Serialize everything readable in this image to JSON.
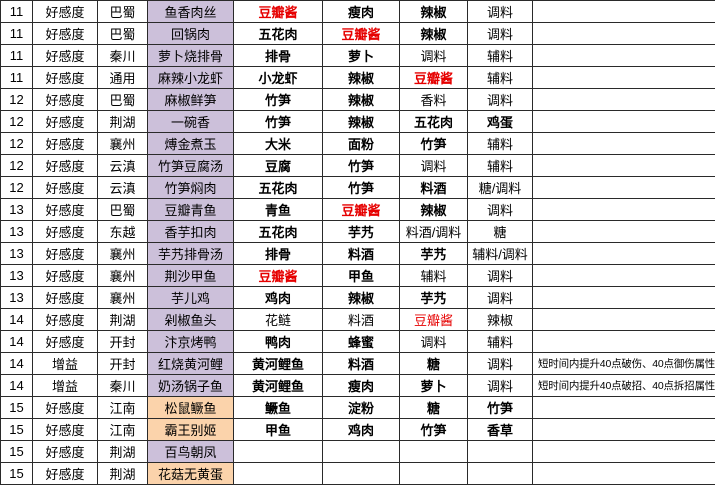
{
  "colors": {
    "dish_purple": "#ccc0da",
    "dish_orange": "#fbd3ab",
    "ingredient_red": "#e60000",
    "grid_border": "#2a2a2a"
  },
  "table": {
    "columns": [
      "level",
      "type",
      "region",
      "dish",
      "ingredient1",
      "ingredient2",
      "ingredient3",
      "ingredient4",
      "note"
    ],
    "rows": [
      {
        "level": "11",
        "type": "好感度",
        "region": "巴蜀",
        "dish": "鱼香肉丝",
        "dish_bg": "purple",
        "ingredients": [
          {
            "text": "豆瓣酱",
            "bold": true,
            "red": true
          },
          {
            "text": "瘦肉",
            "bold": true,
            "red": false
          },
          {
            "text": "辣椒",
            "bold": true,
            "red": false
          },
          {
            "text": "调料",
            "bold": false,
            "red": false
          }
        ],
        "note": ""
      },
      {
        "level": "11",
        "type": "好感度",
        "region": "巴蜀",
        "dish": "回锅肉",
        "dish_bg": "purple",
        "ingredients": [
          {
            "text": "五花肉",
            "bold": true,
            "red": false
          },
          {
            "text": "豆瓣酱",
            "bold": true,
            "red": true
          },
          {
            "text": "辣椒",
            "bold": true,
            "red": false
          },
          {
            "text": "调料",
            "bold": false,
            "red": false
          }
        ],
        "note": ""
      },
      {
        "level": "11",
        "type": "好感度",
        "region": "秦川",
        "dish": "萝卜烧排骨",
        "dish_bg": "purple",
        "ingredients": [
          {
            "text": "排骨",
            "bold": true,
            "red": false
          },
          {
            "text": "萝卜",
            "bold": true,
            "red": false
          },
          {
            "text": "调料",
            "bold": false,
            "red": false
          },
          {
            "text": "辅料",
            "bold": false,
            "red": false
          }
        ],
        "note": ""
      },
      {
        "level": "11",
        "type": "好感度",
        "region": "通用",
        "dish": "麻辣小龙虾",
        "dish_bg": "purple",
        "ingredients": [
          {
            "text": "小龙虾",
            "bold": true,
            "red": false
          },
          {
            "text": "辣椒",
            "bold": true,
            "red": false
          },
          {
            "text": "豆瓣酱",
            "bold": true,
            "red": true
          },
          {
            "text": "辅料",
            "bold": false,
            "red": false
          }
        ],
        "note": ""
      },
      {
        "level": "12",
        "type": "好感度",
        "region": "巴蜀",
        "dish": "麻椒鲜笋",
        "dish_bg": "purple",
        "ingredients": [
          {
            "text": "竹笋",
            "bold": true,
            "red": false
          },
          {
            "text": "辣椒",
            "bold": true,
            "red": false
          },
          {
            "text": "香料",
            "bold": false,
            "red": false
          },
          {
            "text": "调料",
            "bold": false,
            "red": false
          }
        ],
        "note": ""
      },
      {
        "level": "12",
        "type": "好感度",
        "region": "荆湖",
        "dish": "一碗香",
        "dish_bg": "purple",
        "ingredients": [
          {
            "text": "竹笋",
            "bold": true,
            "red": false
          },
          {
            "text": "辣椒",
            "bold": true,
            "red": false
          },
          {
            "text": "五花肉",
            "bold": true,
            "red": false
          },
          {
            "text": "鸡蛋",
            "bold": true,
            "red": false
          }
        ],
        "note": ""
      },
      {
        "level": "12",
        "type": "好感度",
        "region": "襄州",
        "dish": "煿金煮玉",
        "dish_bg": "purple",
        "ingredients": [
          {
            "text": "大米",
            "bold": true,
            "red": false
          },
          {
            "text": "面粉",
            "bold": true,
            "red": false
          },
          {
            "text": "竹笋",
            "bold": true,
            "red": false
          },
          {
            "text": "辅料",
            "bold": false,
            "red": false
          }
        ],
        "note": ""
      },
      {
        "level": "12",
        "type": "好感度",
        "region": "云滇",
        "dish": "竹笋豆腐汤",
        "dish_bg": "purple",
        "ingredients": [
          {
            "text": "豆腐",
            "bold": true,
            "red": false
          },
          {
            "text": "竹笋",
            "bold": true,
            "red": false
          },
          {
            "text": "调料",
            "bold": false,
            "red": false
          },
          {
            "text": "辅料",
            "bold": false,
            "red": false
          }
        ],
        "note": ""
      },
      {
        "level": "12",
        "type": "好感度",
        "region": "云滇",
        "dish": "竹笋焖肉",
        "dish_bg": "purple",
        "ingredients": [
          {
            "text": "五花肉",
            "bold": true,
            "red": false
          },
          {
            "text": "竹笋",
            "bold": true,
            "red": false
          },
          {
            "text": "料酒",
            "bold": true,
            "red": false
          },
          {
            "text": "糖/调料",
            "bold": false,
            "red": false
          }
        ],
        "note": ""
      },
      {
        "level": "13",
        "type": "好感度",
        "region": "巴蜀",
        "dish": "豆瓣青鱼",
        "dish_bg": "purple",
        "ingredients": [
          {
            "text": "青鱼",
            "bold": true,
            "red": false
          },
          {
            "text": "豆瓣酱",
            "bold": true,
            "red": true
          },
          {
            "text": "辣椒",
            "bold": true,
            "red": false
          },
          {
            "text": "调料",
            "bold": false,
            "red": false
          }
        ],
        "note": ""
      },
      {
        "level": "13",
        "type": "好感度",
        "region": "东越",
        "dish": "香芋扣肉",
        "dish_bg": "purple",
        "ingredients": [
          {
            "text": "五花肉",
            "bold": true,
            "red": false
          },
          {
            "text": "芋艿",
            "bold": true,
            "red": false
          },
          {
            "text": "料酒/调料",
            "bold": false,
            "red": false
          },
          {
            "text": "糖",
            "bold": false,
            "red": false
          }
        ],
        "note": ""
      },
      {
        "level": "13",
        "type": "好感度",
        "region": "襄州",
        "dish": "芋艿排骨汤",
        "dish_bg": "purple",
        "ingredients": [
          {
            "text": "排骨",
            "bold": true,
            "red": false
          },
          {
            "text": "料酒",
            "bold": true,
            "red": false
          },
          {
            "text": "芋艿",
            "bold": true,
            "red": false
          },
          {
            "text": "辅料/调料",
            "bold": false,
            "red": false
          }
        ],
        "note": ""
      },
      {
        "level": "13",
        "type": "好感度",
        "region": "襄州",
        "dish": "荆沙甲鱼",
        "dish_bg": "purple",
        "ingredients": [
          {
            "text": "豆瓣酱",
            "bold": true,
            "red": true
          },
          {
            "text": "甲鱼",
            "bold": true,
            "red": false
          },
          {
            "text": "辅料",
            "bold": false,
            "red": false
          },
          {
            "text": "调料",
            "bold": false,
            "red": false
          }
        ],
        "note": ""
      },
      {
        "level": "13",
        "type": "好感度",
        "region": "襄州",
        "dish": "芋儿鸡",
        "dish_bg": "purple",
        "ingredients": [
          {
            "text": "鸡肉",
            "bold": true,
            "red": false
          },
          {
            "text": "辣椒",
            "bold": true,
            "red": false
          },
          {
            "text": "芋艿",
            "bold": true,
            "red": false
          },
          {
            "text": "调料",
            "bold": false,
            "red": false
          }
        ],
        "note": ""
      },
      {
        "level": "14",
        "type": "好感度",
        "region": "荆湖",
        "dish": "剁椒鱼头",
        "dish_bg": "purple",
        "ingredients": [
          {
            "text": "花鲢",
            "bold": false,
            "red": false
          },
          {
            "text": "料酒",
            "bold": false,
            "red": false
          },
          {
            "text": "豆瓣酱",
            "bold": false,
            "red": true
          },
          {
            "text": "辣椒",
            "bold": false,
            "red": false
          }
        ],
        "note": ""
      },
      {
        "level": "14",
        "type": "好感度",
        "region": "开封",
        "dish": "汴京烤鸭",
        "dish_bg": "purple",
        "ingredients": [
          {
            "text": "鸭肉",
            "bold": true,
            "red": false
          },
          {
            "text": "蜂蜜",
            "bold": true,
            "red": false
          },
          {
            "text": "调料",
            "bold": false,
            "red": false
          },
          {
            "text": "辅料",
            "bold": false,
            "red": false
          }
        ],
        "note": ""
      },
      {
        "level": "14",
        "type": "增益",
        "region": "开封",
        "dish": "红烧黄河鲤",
        "dish_bg": "purple",
        "ingredients": [
          {
            "text": "黄河鲤鱼",
            "bold": true,
            "red": false
          },
          {
            "text": "料酒",
            "bold": true,
            "red": false
          },
          {
            "text": "糖",
            "bold": true,
            "red": false
          },
          {
            "text": "调料",
            "bold": false,
            "red": false
          }
        ],
        "note": "短时间内提升40点破伤、40点御伤属性"
      },
      {
        "level": "14",
        "type": "增益",
        "region": "秦川",
        "dish": "奶汤锅子鱼",
        "dish_bg": "purple",
        "ingredients": [
          {
            "text": "黄河鲤鱼",
            "bold": true,
            "red": false
          },
          {
            "text": "瘦肉",
            "bold": true,
            "red": false
          },
          {
            "text": "萝卜",
            "bold": true,
            "red": false
          },
          {
            "text": "调料",
            "bold": false,
            "red": false
          }
        ],
        "note": "短时间内提升40点破招、40点拆招属性"
      },
      {
        "level": "15",
        "type": "好感度",
        "region": "江南",
        "dish": "松鼠鳜鱼",
        "dish_bg": "orange",
        "ingredients": [
          {
            "text": "鳜鱼",
            "bold": true,
            "red": false
          },
          {
            "text": "淀粉",
            "bold": true,
            "red": false
          },
          {
            "text": "糖",
            "bold": true,
            "red": false
          },
          {
            "text": "竹笋",
            "bold": true,
            "red": false
          }
        ],
        "note": ""
      },
      {
        "level": "15",
        "type": "好感度",
        "region": "江南",
        "dish": "霸王别姬",
        "dish_bg": "orange",
        "ingredients": [
          {
            "text": "甲鱼",
            "bold": true,
            "red": false
          },
          {
            "text": "鸡肉",
            "bold": true,
            "red": false
          },
          {
            "text": "竹笋",
            "bold": true,
            "red": false
          },
          {
            "text": "香草",
            "bold": true,
            "red": false
          }
        ],
        "note": ""
      },
      {
        "level": "15",
        "type": "好感度",
        "region": "荆湖",
        "dish": "百鸟朝凤",
        "dish_bg": "purple",
        "ingredients": [
          {
            "text": "",
            "bold": false,
            "red": false
          },
          {
            "text": "",
            "bold": false,
            "red": false
          },
          {
            "text": "",
            "bold": false,
            "red": false
          },
          {
            "text": "",
            "bold": false,
            "red": false
          }
        ],
        "note": ""
      },
      {
        "level": "15",
        "type": "好感度",
        "region": "荆湖",
        "dish": "花菇无黄蛋",
        "dish_bg": "orange",
        "ingredients": [
          {
            "text": "",
            "bold": false,
            "red": false
          },
          {
            "text": "",
            "bold": false,
            "red": false
          },
          {
            "text": "",
            "bold": false,
            "red": false
          },
          {
            "text": "",
            "bold": false,
            "red": false
          }
        ],
        "note": ""
      }
    ]
  }
}
